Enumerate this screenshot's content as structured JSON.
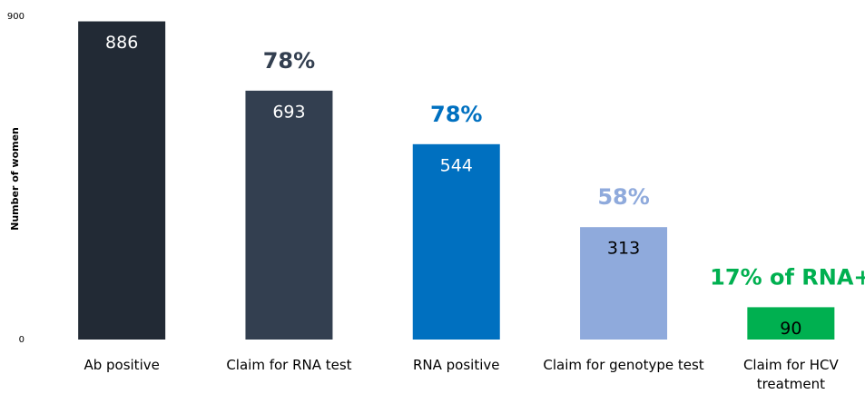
{
  "chart_data": {
    "type": "bar",
    "y_label": "Number of women",
    "categories": [
      "Ab positive",
      "Claim for RNA test",
      "RNA positive",
      "Claim for genotype test",
      "Claim for HCV treatment"
    ],
    "values": [
      886,
      693,
      544,
      313,
      90
    ],
    "colors": [
      "#222a35",
      "#333f50",
      "#0070c0",
      "#8faadc",
      "#00b050"
    ],
    "value_label_colors": [
      "#ffffff",
      "#ffffff",
      "#ffffff",
      "#000000",
      "#000000"
    ],
    "annotations": [
      null,
      "78%",
      "78%",
      "58%",
      "17% of RNA+"
    ],
    "ylim": [
      0,
      900
    ],
    "yticks": [
      0,
      900
    ],
    "grid": false
  }
}
